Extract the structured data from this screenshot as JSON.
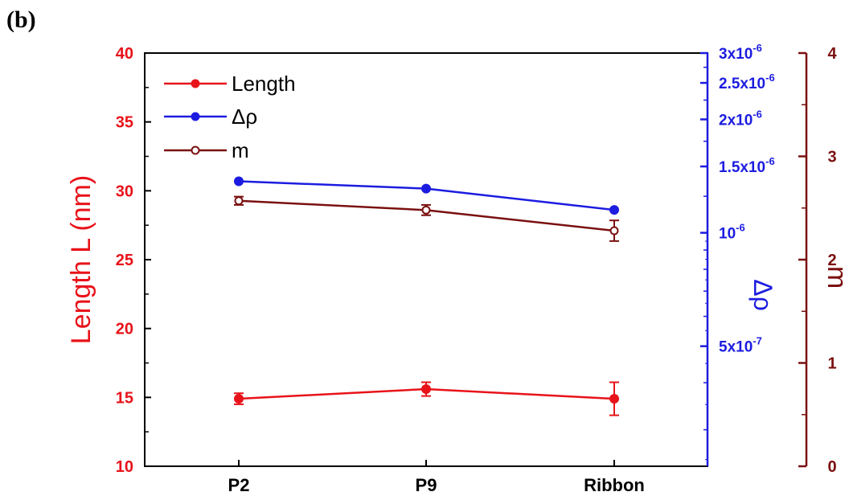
{
  "panel_label": "(b)",
  "colors": {
    "length": "#e8131a",
    "drho": "#1c1ce0",
    "m": "#7a1010",
    "frame": "#000000"
  },
  "chart_data": {
    "type": "line",
    "categories": [
      "P2",
      "P9",
      "Ribbon"
    ],
    "left_axis": {
      "label": "Length L (nm)",
      "range": [
        10,
        40
      ],
      "ticks": [
        "10",
        "15",
        "20",
        "25",
        "30",
        "35",
        "40"
      ]
    },
    "right_axis_drho": {
      "label": "Δρ",
      "scale": "log",
      "range": [
        2.4e-07,
        3e-06
      ],
      "ticks": [
        {
          "value": 5e-07,
          "label": "5x10-7"
        },
        {
          "value": 1e-06,
          "label": "10-6"
        },
        {
          "value": 1.5e-06,
          "label": "1.5x10-6"
        },
        {
          "value": 2e-06,
          "label": "2x10-6"
        },
        {
          "value": 2.5e-06,
          "label": "2.5x10-6"
        },
        {
          "value": 3e-06,
          "label": "3x10-6"
        }
      ]
    },
    "right_axis_m": {
      "label": "m",
      "range": [
        0,
        4
      ],
      "ticks": [
        "0",
        "1",
        "2",
        "3",
        "4"
      ]
    },
    "series": [
      {
        "name": "Length",
        "axis": "left",
        "values": [
          14.9,
          15.6,
          14.9
        ],
        "errors": [
          0.4,
          0.5,
          1.2
        ]
      },
      {
        "name": "Δρ",
        "axis": "drho",
        "values": [
          1.37e-06,
          1.31e-06,
          1.15e-06
        ]
      },
      {
        "name": "m",
        "axis": "m",
        "values": [
          2.57,
          2.48,
          2.28
        ],
        "errors": [
          0.04,
          0.05,
          0.1
        ]
      }
    ]
  }
}
